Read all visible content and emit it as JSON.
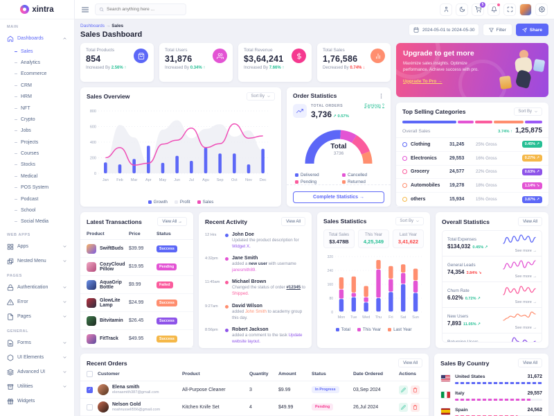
{
  "header": {
    "logo_text": "xintra",
    "search_placeholder": "Search anything here ...",
    "cart_badge": "5"
  },
  "breadcrumb": {
    "parent": "Dashboards",
    "separator": "→",
    "current": "Sales"
  },
  "page_title": "Sales Dashboard",
  "toolbar": {
    "date_range": "2024-05-01 to 2024-05-30",
    "filter": "Filter",
    "share": "Share"
  },
  "sidebar": {
    "sections": [
      {
        "label": "MAIN",
        "dashboards": {
          "label": "Dashboards",
          "icon": "home"
        },
        "children": [
          {
            "label": "Sales",
            "active": true
          },
          {
            "label": "Analytics"
          },
          {
            "label": "Ecommerce"
          },
          {
            "label": "CRM"
          },
          {
            "label": "HRM"
          },
          {
            "label": "NFT"
          },
          {
            "label": "Crypto"
          },
          {
            "label": "Jobs"
          },
          {
            "label": "Projects"
          },
          {
            "label": "Courses"
          },
          {
            "label": "Stocks"
          },
          {
            "label": "Medical"
          },
          {
            "label": "POS System"
          },
          {
            "label": "Podcast"
          },
          {
            "label": "School"
          },
          {
            "label": "Social Media"
          }
        ]
      },
      {
        "label": "WEB APPS",
        "groups": [
          {
            "label": "Apps",
            "icon": "apps"
          },
          {
            "label": "Nested Menu",
            "icon": "nested"
          }
        ]
      },
      {
        "label": "PAGES",
        "groups": [
          {
            "label": "Authentication",
            "icon": "lock"
          },
          {
            "label": "Error",
            "icon": "warning"
          },
          {
            "label": "Pages",
            "icon": "file"
          }
        ]
      },
      {
        "label": "GENERAL",
        "groups": [
          {
            "label": "Forms",
            "icon": "forms"
          },
          {
            "label": "UI Elements",
            "icon": "box"
          },
          {
            "label": "Advanced UI",
            "icon": "layers"
          },
          {
            "label": "Utilities",
            "icon": "archive"
          },
          {
            "label": "Widgets",
            "icon": "gift",
            "no_chevron": true
          }
        ]
      }
    ]
  },
  "kpis": {
    "cards": [
      {
        "label": "Total Products",
        "value": "854",
        "change_prefix": "Increased By",
        "change_value": "2.56%",
        "arrow": "↑",
        "change_color": "#26bf94",
        "icon": "bag",
        "icon_bg": "#5c67f7"
      },
      {
        "label": "Total Users",
        "value": "31,876",
        "change_prefix": "Increased By",
        "change_value": "0.34%",
        "arrow": "↑",
        "change_color": "#26bf94",
        "icon": "users",
        "icon_bg": "#e354d4"
      },
      {
        "label": "Total Revenue",
        "value": "$3,64,241",
        "change_prefix": "Increased By",
        "change_value": "7.66%",
        "arrow": "↑",
        "change_color": "#26bf94",
        "icon": "dollar",
        "icon_bg": "#f5398f"
      },
      {
        "label": "Total Sales",
        "value": "1,76,586",
        "change_prefix": "Decreased By",
        "change_value": "0.74%",
        "arrow": "↓",
        "change_color": "#fb4242",
        "icon": "chart",
        "icon_bg": "#ff8e6f"
      }
    ]
  },
  "upgrade": {
    "title": "Upgrade to get more",
    "desc": "Maximize sales insights. Optimize performance. Achieve success with pro.",
    "link": "Upgrade To Pro →"
  },
  "sales_overview": {
    "title": "Sales Overview",
    "sort_by": "Sort By"
  },
  "order_statistics": {
    "title": "Order Statistics",
    "total_orders_label": "TOTAL ORDERS",
    "total_orders_value": "3,736",
    "change": "↗ 0.57%",
    "earnings_link": "Earnings ?",
    "gauge_center_label": "Total",
    "gauge_center_value": "3736",
    "button": "Complete Statistics →"
  },
  "top_selling": {
    "title": "Top Selling Categories",
    "sort_by": "Sort By",
    "overall_label": "Overall Sales",
    "overall_change": "3.74% ↑",
    "overall_value": "1,25,875",
    "bar_segments": [
      {
        "color": "#5c67f7",
        "w": "40%"
      },
      {
        "color": "#e354d4",
        "w": "12%"
      },
      {
        "color": "#fb5c9d",
        "w": "13%"
      },
      {
        "color": "#ff8e6f",
        "w": "22%"
      },
      {
        "color": "#9b59f7",
        "w": "13%"
      }
    ],
    "rows": [
      {
        "name": "Clothing",
        "color": "#5c67f7",
        "value": "31,245",
        "gross": "25% Gross",
        "badge": "0.45% ↗",
        "badge_color": "#26bf94"
      },
      {
        "name": "Electronics",
        "color": "#e354d4",
        "value": "29,553",
        "gross": "16% Gross",
        "badge": "0.27% ↗",
        "badge_color": "#f5b849"
      },
      {
        "name": "Grocery",
        "color": "#fb5c9d",
        "value": "24,577",
        "gross": "22% Gross",
        "badge": "0.63% ↗",
        "badge_color": "#8e54e9"
      },
      {
        "name": "Automobiles",
        "color": "#ff8e6f",
        "value": "19,278",
        "gross": "18% Gross",
        "badge": "1.14% ↘",
        "badge_color": "#e354d4"
      },
      {
        "name": "others",
        "color": "#f5b849",
        "value": "15,934",
        "gross": "15% Gross",
        "badge": "3.87% ↗",
        "badge_color": "#5c67f7"
      }
    ]
  },
  "transactions": {
    "title": "Latest Transactions",
    "view_all": "View All →",
    "headers": {
      "product": "Product",
      "price": "Price",
      "status": "Status"
    },
    "rows": [
      {
        "name": "SwiftBuds",
        "price": "$39.99",
        "badge": "Success",
        "badge_color": "#5c67f7",
        "t1": "#f7b267",
        "t2": "#7b5be0"
      },
      {
        "name": "CozyCloud Pillow",
        "price": "$19.95",
        "badge": "Pending",
        "badge_color": "#e354d4",
        "t1": "#f2a7c3",
        "t2": "#b24a7a"
      },
      {
        "name": "AquaGrip Bottle",
        "price": "$9.99",
        "badge": "Failed",
        "badge_color": "#fb5c9d",
        "t1": "#6a8fe8",
        "t2": "#27356e"
      },
      {
        "name": "GlowLite Lamp",
        "price": "$24.99",
        "badge": "Success",
        "badge_color": "#ff8e6f",
        "t1": "#b8303f",
        "t2": "#2b2e3e"
      },
      {
        "name": "Bitvitamin",
        "price": "$26.45",
        "badge": "Success",
        "badge_color": "#8e54e9",
        "t1": "#3d7a4a",
        "t2": "#1e2a22"
      },
      {
        "name": "FitTrack",
        "price": "$49.95",
        "badge": "Success",
        "badge_color": "#f5b849",
        "t1": "#e87fb4",
        "t2": "#5c4a9e"
      }
    ]
  },
  "activity": {
    "title": "Recent Activity",
    "view_all": "View All",
    "items": [
      {
        "time": "12 Hrs",
        "dot": "#5c67f7",
        "name": "John Doe",
        "parts": [
          {
            "t": "Updated the product description for "
          },
          {
            "t": "Widget X.",
            "color": "#8e54e9"
          }
        ]
      },
      {
        "time": "4:32pm",
        "dot": "#e354d4",
        "name": "Jane Smith",
        "parts": [
          {
            "t": "added a "
          },
          {
            "t": "new user",
            "bold": true
          },
          {
            "t": " with username "
          },
          {
            "t": "janesmith89.",
            "color": "#e354d4"
          }
        ]
      },
      {
        "time": "11:45am",
        "dot": "#fb5c9d",
        "name": "Michael Brown",
        "parts": [
          {
            "t": "Changed the status of order "
          },
          {
            "t": "#12345",
            "bold": true,
            "underline": true
          },
          {
            "t": " to "
          },
          {
            "t": "Shipped.",
            "color": "#fb5c9d"
          }
        ]
      },
      {
        "time": "9:27am",
        "dot": "#ff8e6f",
        "name": "David Wilson",
        "parts": [
          {
            "t": "added "
          },
          {
            "t": "John Smith",
            "color": "#ff8e6f"
          },
          {
            "t": " to academy group this day."
          }
        ]
      },
      {
        "time": "8:56pm",
        "dot": "#8e54e9",
        "name": "Robert Jackson",
        "parts": [
          {
            "t": "added a comment to the task "
          },
          {
            "t": "Update website layout.",
            "color": "#8e54e9"
          }
        ]
      }
    ]
  },
  "sales_stats": {
    "title": "Sales Statistics",
    "sort_by": "Sort By",
    "boxes": [
      {
        "label": "Total Sales",
        "value": "$3.478B",
        "color": "#22253d"
      },
      {
        "label": "This Year",
        "value": "4,25,349",
        "color": "#26bf94"
      },
      {
        "label": "Last Year",
        "value": "3,41,622",
        "color": "#fb4242"
      }
    ]
  },
  "overall_stats": {
    "title": "Overall Statistics",
    "view_all": "View All",
    "see_more": "See more →",
    "items": [
      {
        "label": "Total Expenses",
        "value": "$134,032",
        "change": "0.45% ↗",
        "change_color": "#26bf94",
        "spark_color": "#5c67f7",
        "spark": [
          5,
          10,
          6,
          11,
          7,
          12,
          8,
          11,
          6,
          10
        ]
      },
      {
        "label": "General Leads",
        "value": "74,354",
        "change": "3.84% ↘",
        "change_color": "#fb4242",
        "spark_color": "#e354d4",
        "spark": [
          6,
          10,
          7,
          11,
          8,
          12,
          7,
          11,
          9,
          12
        ]
      },
      {
        "label": "Churn Rate",
        "value": "6.02%",
        "change": "0.72% ↗",
        "change_color": "#26bf94",
        "spark_color": "#fb5c9d",
        "spark": [
          4,
          10,
          6,
          9,
          5,
          11,
          7,
          10,
          6,
          9
        ]
      },
      {
        "label": "New Users",
        "value": "7,893",
        "change": "11.05% ↗",
        "change_color": "#26bf94",
        "spark_color": "#ff8e6f",
        "spark": [
          4,
          6,
          8,
          7,
          10,
          8,
          9,
          7,
          12,
          10
        ]
      },
      {
        "label": "Returning Users",
        "value": "3,258",
        "change": "1.69% ↗",
        "change_color": "#26bf94",
        "spark_color": "#8e54e9",
        "spark": [
          5,
          8,
          6,
          12,
          9,
          7,
          10,
          8,
          7,
          9
        ]
      }
    ]
  },
  "orders": {
    "title": "Recent Orders",
    "view_all": "View All",
    "headers": {
      "customer": "Customer",
      "product": "Product",
      "quantity": "Quantity",
      "amount": "Amount",
      "status": "Status",
      "date": "Date Ordered",
      "actions": "Actions"
    },
    "rows": [
      {
        "checked": true,
        "name": "Elena smith",
        "email": "elenasmith387@gmail.com",
        "product": "All-Purpose Cleaner",
        "qty": "3",
        "amount": "$9.99",
        "status": "In Progress",
        "status_color": "#5c67f7",
        "status_bg": "#eef0ff",
        "date": "03,Sep 2024",
        "a1": "#d88c6a",
        "a2": "#53331f"
      },
      {
        "checked": false,
        "name": "Nelson Gold",
        "email": "noahrussell556@gmail.com",
        "product": "Kitchen Knife Set",
        "qty": "4",
        "amount": "$49.99",
        "status": "Pending",
        "status_color": "#f5398f",
        "status_bg": "#fde9f5",
        "date": "26,Jul 2024",
        "a1": "#c96a4e",
        "a2": "#2a1d18"
      }
    ]
  },
  "countries": {
    "title": "Sales By Country",
    "view_all": "View All",
    "rows": [
      {
        "name": "United States",
        "value": "31,672",
        "color": "#5c67f7",
        "pct": "100%",
        "flag": "us"
      },
      {
        "name": "Italy",
        "value": "29,557",
        "color": "#e354d4",
        "pct": "88%",
        "flag": "it"
      },
      {
        "name": "Spain",
        "value": "24,562",
        "color": "#fb5c9d",
        "pct": "72%",
        "flag": "es"
      }
    ]
  },
  "chart_data": {
    "sales_overview": {
      "type": "combo",
      "categories": [
        "Jan",
        "Feb",
        "Mar",
        "Apr",
        "May",
        "Jun",
        "Jul",
        "Agu",
        "Sep",
        "Oct",
        "Nov",
        "Dec"
      ],
      "series": [
        {
          "name": "Growth",
          "type": "bar",
          "color": "#5c67f7",
          "values": [
            140,
            115,
            185,
            355,
            135,
            225,
            160,
            330,
            255,
            255,
            115,
            315
          ]
        },
        {
          "name": "Profit",
          "type": "area",
          "color": "#ebecf3",
          "values": [
            180,
            620,
            460,
            130,
            560,
            680,
            450,
            570,
            630,
            470,
            550,
            290
          ]
        },
        {
          "name": "Sales",
          "type": "line",
          "color": "#ef4db6",
          "values": [
            200,
            330,
            105,
            130,
            375,
            425,
            580,
            330,
            380,
            635,
            450,
            480
          ]
        }
      ],
      "ylim": [
        0,
        800
      ],
      "yticks": [
        0,
        200,
        400,
        600,
        800
      ]
    },
    "order_gauge": {
      "type": "gauge",
      "total": 3736,
      "segments": [
        {
          "name": "Delivered",
          "value": 52,
          "color": "#5c67f7"
        },
        {
          "name": "Cancelled",
          "value": 16,
          "color": "#e354d4"
        },
        {
          "name": "Pending",
          "value": 20,
          "color": "#fb5c9d"
        },
        {
          "name": "Returned",
          "value": 12,
          "color": "#ff8e6f"
        }
      ]
    },
    "sales_statistics": {
      "type": "stacked-bar",
      "categories": [
        "Mon",
        "Tue",
        "Wed",
        "Thu",
        "Fri",
        "Sat",
        "Sun"
      ],
      "series": [
        {
          "name": "Total",
          "color": "#5c67f7",
          "values": [
            75,
            85,
            55,
            80,
            115,
            160,
            110
          ]
        },
        {
          "name": "This Year",
          "color": "#e354d4",
          "values": [
            55,
            25,
            30,
            165,
            75,
            65,
            70
          ]
        },
        {
          "name": "Last Year",
          "color": "#ff8e6f",
          "values": [
            70,
            95,
            65,
            55,
            75,
            50,
            70
          ]
        }
      ],
      "ylim": [
        0,
        320
      ],
      "yticks": [
        0,
        80,
        160,
        240,
        320
      ]
    }
  }
}
